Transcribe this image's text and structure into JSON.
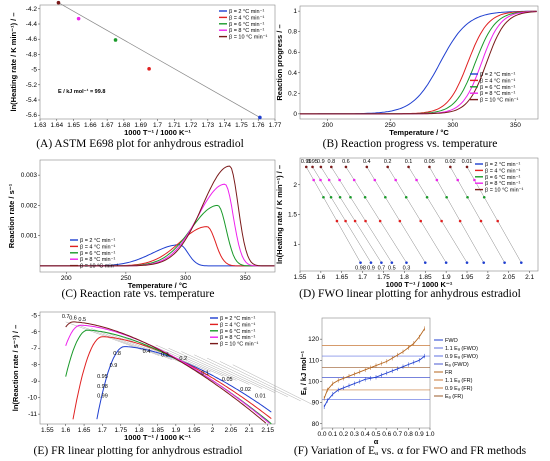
{
  "chart_data": [
    {
      "type": "scatter",
      "caption": "(A) ASTM E698 plot for anhydrous estradiol",
      "xlabel": "1000 T⁻¹ / 1000 K⁻¹",
      "ylabel": "ln(Heating rate / K min⁻¹) / –",
      "xlim": [
        1.63,
        1.77
      ],
      "ylim": [
        -5.65,
        -4.15
      ],
      "xticks": [
        "1.63",
        "1.64",
        "1.65",
        "1.66",
        "1.67",
        "1.68",
        "1.69",
        "1.7",
        "1.71",
        "1.72",
        "1.73",
        "1.74",
        "1.75",
        "1.76",
        "1.77"
      ],
      "yticks": [
        "-4.2",
        "-4.4",
        "-4.6",
        "-4.8",
        "-5",
        "-5.2",
        "-5.4",
        "-5.6"
      ],
      "series": [
        {
          "name": "β =  2 °C min⁻¹",
          "color": "#1f3fd0",
          "x": [
            1.761
          ],
          "y": [
            -5.63
          ]
        },
        {
          "name": "β =  4 °C min⁻¹",
          "color": "#e02020",
          "x": [
            1.695
          ],
          "y": [
            -4.99
          ]
        },
        {
          "name": "β =  6 °C min⁻¹",
          "color": "#1a9a2a",
          "x": [
            1.675
          ],
          "y": [
            -4.61
          ]
        },
        {
          "name": "β =  8 °C min⁻¹",
          "color": "#ee22ee",
          "x": [
            1.653
          ],
          "y": [
            -4.33
          ]
        },
        {
          "name": "β = 10 °C min⁻¹",
          "color": "#7a1a1a",
          "x": [
            1.641
          ],
          "y": [
            -4.12
          ]
        }
      ],
      "fit_line": {
        "x": [
          1.641,
          1.761
        ],
        "y": [
          -4.12,
          -5.63
        ]
      },
      "annotation": "E / kJ mol⁻¹ = 99.8"
    },
    {
      "type": "line",
      "caption": "(B) Reaction progress vs. temperature",
      "xlabel": "Temperature / °C",
      "ylabel": "Reaction progress / –",
      "xlim": [
        178,
        368
      ],
      "ylim": [
        -0.05,
        1.05
      ],
      "xticks": [
        "200",
        "250",
        "300",
        "350"
      ],
      "yticks": [
        "0",
        "0.2",
        "0.4",
        "0.6",
        "0.8",
        "1"
      ],
      "series": [
        {
          "name": "β =  2 °C min⁻¹",
          "color": "#1f3fd0",
          "mid": 290,
          "width": 11
        },
        {
          "name": "β =  4 °C min⁻¹",
          "color": "#e02020",
          "mid": 312,
          "width": 8
        },
        {
          "name": "β =  6 °C min⁻¹",
          "color": "#1a9a2a",
          "mid": 318,
          "width": 8
        },
        {
          "name": "β =  8 °C min⁻¹",
          "color": "#ee22ee",
          "mid": 323,
          "width": 7.5
        },
        {
          "name": "β = 10 °C min⁻¹",
          "color": "#7a1a1a",
          "mid": 327,
          "width": 7.5
        }
      ]
    },
    {
      "type": "line",
      "caption": "(C) Reaction rate vs. temperature",
      "xlabel": "Temperature / °C",
      "ylabel": "Reaction rate / s⁻¹",
      "xlim": [
        178,
        375
      ],
      "ylim": [
        -0.0002,
        0.0035
      ],
      "xticks": [
        "200",
        "250",
        "300",
        "350"
      ],
      "yticks": [
        "0.001",
        "0.002",
        "0.003"
      ],
      "series": [
        {
          "name": "β =  2 °C min⁻¹",
          "color": "#1f3fd0",
          "peak_x": 295,
          "peak_y": 0.0007
        },
        {
          "name": "β =  4 °C min⁻¹",
          "color": "#e02020",
          "peak_x": 318,
          "peak_y": 0.0013
        },
        {
          "name": "β =  6 °C min⁻¹",
          "color": "#1a9a2a",
          "peak_x": 327,
          "peak_y": 0.002
        },
        {
          "name": "β =  8 °C min⁻¹",
          "color": "#ee22ee",
          "peak_x": 333,
          "peak_y": 0.0027
        },
        {
          "name": "β = 10 °C min⁻¹",
          "color": "#7a1a1a",
          "peak_x": 337,
          "peak_y": 0.0033
        }
      ]
    },
    {
      "type": "scatter",
      "caption": "(D) FWO linear plotting for anhydrous estradiol",
      "xlabel": "1000 T⁻¹ / 1000 K⁻¹",
      "ylabel": "ln(Heating rate / K min⁻¹) / –",
      "xlim": [
        1.55,
        2.12
      ],
      "ylim": [
        0.55,
        2.45
      ],
      "xticks": [
        "1.55",
        "1.6",
        "1.65",
        "1.7",
        "1.75",
        "1.8",
        "1.85",
        "1.9",
        "1.95",
        "2",
        "2.05",
        "2.1"
      ],
      "yticks": [
        "1",
        "1.5",
        "2"
      ],
      "series": [
        {
          "name": "β =  2 °C min⁻¹",
          "color": "#1f3fd0",
          "y": 0.69
        },
        {
          "name": "β =  4 °C min⁻¹",
          "color": "#e02020",
          "y": 1.39
        },
        {
          "name": "β =  6 °C min⁻¹",
          "color": "#1a9a2a",
          "y": 1.79
        },
        {
          "name": "β =  8 °C min⁻¹",
          "color": "#ee22ee",
          "y": 2.08
        },
        {
          "name": "β = 10 °C min⁻¹",
          "color": "#7a1a1a",
          "y": 2.3
        }
      ],
      "alpha_lines": [
        {
          "top_x": 1.565,
          "bottom_x": 1.695
        },
        {
          "top_x": 1.58,
          "bottom_x": 1.72
        },
        {
          "top_x": 1.6,
          "bottom_x": 1.745
        },
        {
          "top_x": 1.625,
          "bottom_x": 1.77
        },
        {
          "top_x": 1.66,
          "bottom_x": 1.805
        },
        {
          "top_x": 1.71,
          "bottom_x": 1.85
        },
        {
          "top_x": 1.76,
          "bottom_x": 1.9
        },
        {
          "top_x": 1.81,
          "bottom_x": 1.95
        },
        {
          "top_x": 1.86,
          "bottom_x": 1.99
        },
        {
          "top_x": 1.91,
          "bottom_x": 2.04
        },
        {
          "top_x": 1.95,
          "bottom_x": 2.08
        }
      ],
      "top_labels": [
        "0.99",
        "0.95",
        "0.9",
        "0.8",
        "0.6",
        "0.4",
        "0.2",
        "0.1",
        "0.05",
        "0.02",
        "0.01"
      ],
      "bottom_labels": [
        "0.98",
        "0.9",
        "0.7",
        "0.5",
        "0.3"
      ]
    },
    {
      "type": "line",
      "caption": "(E) FR linear plotting for anhydrous estradiol",
      "xlabel": "1000 T⁻¹ / 1000 K⁻¹",
      "ylabel": "ln(Reaction rate / s⁻¹) / –",
      "xlim": [
        1.53,
        2.17
      ],
      "ylim": [
        -11.6,
        -4.8
      ],
      "xticks": [
        "1.55",
        "1.6",
        "1.65",
        "1.7",
        "1.75",
        "1.8",
        "1.85",
        "1.9",
        "1.95",
        "2",
        "2.05",
        "2.1",
        "2.15"
      ],
      "yticks": [
        "-5",
        "-6",
        "-7",
        "-8",
        "-9",
        "-10",
        "-11"
      ],
      "series": [
        {
          "name": "β =  2 °C min⁻¹",
          "color": "#1f3fd0",
          "peak_x": 1.76,
          "peak_y": -6.9
        },
        {
          "name": "β =  4 °C min⁻¹",
          "color": "#e02020",
          "peak_x": 1.7,
          "peak_y": -6.3
        },
        {
          "name": "β =  6 °C min⁻¹",
          "color": "#1a9a2a",
          "peak_x": 1.66,
          "peak_y": -5.9
        },
        {
          "name": "β =  8 °C min⁻¹",
          "color": "#ee22ee",
          "peak_x": 1.64,
          "peak_y": -5.6
        },
        {
          "name": "β = 10 °C min⁻¹",
          "color": "#7a1a1a",
          "peak_x": 1.62,
          "peak_y": -5.4
        }
      ],
      "iso_labels": [
        "0.7",
        "0.6",
        "0.5",
        "0.8",
        "0.4",
        "0.3",
        "0.2",
        "0.1",
        "0.05",
        "0.02",
        "0.01",
        "0.9",
        "0.95",
        "0.98",
        "0.99"
      ]
    },
    {
      "type": "line",
      "caption": "(F) Variation of Eₐ vs. α for FWO and FR methods",
      "xlabel": "α",
      "ylabel": "Eₐ / kJ mol⁻¹",
      "xlim": [
        0,
        1
      ],
      "ylim": [
        78,
        130
      ],
      "xticks": [
        "0.0",
        "0.1",
        "0.2",
        "0.3",
        "0.4",
        "0.5",
        "0.6",
        "0.7",
        "0.8",
        "0.9",
        "1.0"
      ],
      "yticks": [
        "80",
        "90",
        "100",
        "110",
        "120"
      ],
      "legend": [
        "FWO",
        "1.1 Eₐ (FWO)",
        "0.9 Eₐ (FWO)",
        "Eₐ (FWO)",
        "FR",
        "1.1 Eₐ (FR)",
        "0.9 Eₐ (FR)",
        "Eₐ (FR)"
      ],
      "series": [
        {
          "name": "FWO",
          "color": "#1f3fd0",
          "x": [
            0.02,
            0.05,
            0.1,
            0.15,
            0.2,
            0.25,
            0.3,
            0.35,
            0.4,
            0.45,
            0.5,
            0.55,
            0.6,
            0.65,
            0.7,
            0.75,
            0.8,
            0.85,
            0.9,
            0.95
          ],
          "y": [
            88,
            91,
            94,
            96,
            97,
            98,
            99,
            100,
            101,
            101.5,
            102,
            103,
            104,
            105,
            106,
            107,
            108,
            109,
            110,
            112
          ]
        },
        {
          "name": "FR",
          "color": "#b5651d",
          "x": [
            0.02,
            0.05,
            0.1,
            0.15,
            0.2,
            0.25,
            0.3,
            0.35,
            0.4,
            0.45,
            0.5,
            0.55,
            0.6,
            0.65,
            0.7,
            0.75,
            0.8,
            0.85,
            0.9,
            0.95
          ],
          "y": [
            92,
            96,
            99,
            100.5,
            101.5,
            102.5,
            103.5,
            104.5,
            105.5,
            106.5,
            107.5,
            108.5,
            109.5,
            111,
            112.5,
            114,
            116,
            118,
            121,
            125
          ]
        }
      ],
      "hlines": [
        {
          "name": "1.1 Eₐ (FWO)",
          "color": "#5c6fe0",
          "y": 112
        },
        {
          "name": "0.9 Eₐ (FWO)",
          "color": "#5c6fe0",
          "y": 91.5
        },
        {
          "name": "Eₐ (FWO)",
          "color": "#4a5ad0",
          "y": 101.8
        },
        {
          "name": "1.1 Eₐ (FR)",
          "color": "#c87a3a",
          "y": 117
        },
        {
          "name": "0.9 Eₐ (FR)",
          "color": "#c87a3a",
          "y": 96
        },
        {
          "name": "Eₐ (FR)",
          "color": "#9a5a2a",
          "y": 106.5
        }
      ]
    }
  ]
}
